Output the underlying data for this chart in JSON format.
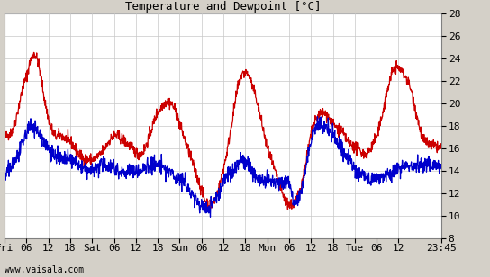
{
  "title": "Temperature and Dewpoint [°C]",
  "watermark": "www.vaisala.com",
  "xlabels": [
    "Fri",
    "06",
    "12",
    "18",
    "Sat",
    "06",
    "12",
    "18",
    "Sun",
    "06",
    "12",
    "18",
    "Mon",
    "06",
    "12",
    "18",
    "Tue",
    "06",
    "12",
    "23:45"
  ],
  "xtick_positions": [
    0,
    6,
    12,
    18,
    24,
    30,
    36,
    42,
    48,
    54,
    60,
    66,
    72,
    78,
    84,
    90,
    96,
    102,
    108,
    119.75
  ],
  "ylim": [
    8,
    28
  ],
  "yticks": [
    8,
    10,
    12,
    14,
    16,
    18,
    20,
    22,
    24,
    26,
    28
  ],
  "xlim": [
    0,
    119.75
  ],
  "temp_color": "#cc0000",
  "dew_color": "#0000cc",
  "plot_bg_color": "#ffffff",
  "outer_bg_color": "#d4d0c8",
  "grid_color": "#c8c8c8",
  "border_color": "#808080",
  "title_fontsize": 9,
  "tick_fontsize": 8,
  "watermark_fontsize": 7,
  "line_width": 0.9
}
